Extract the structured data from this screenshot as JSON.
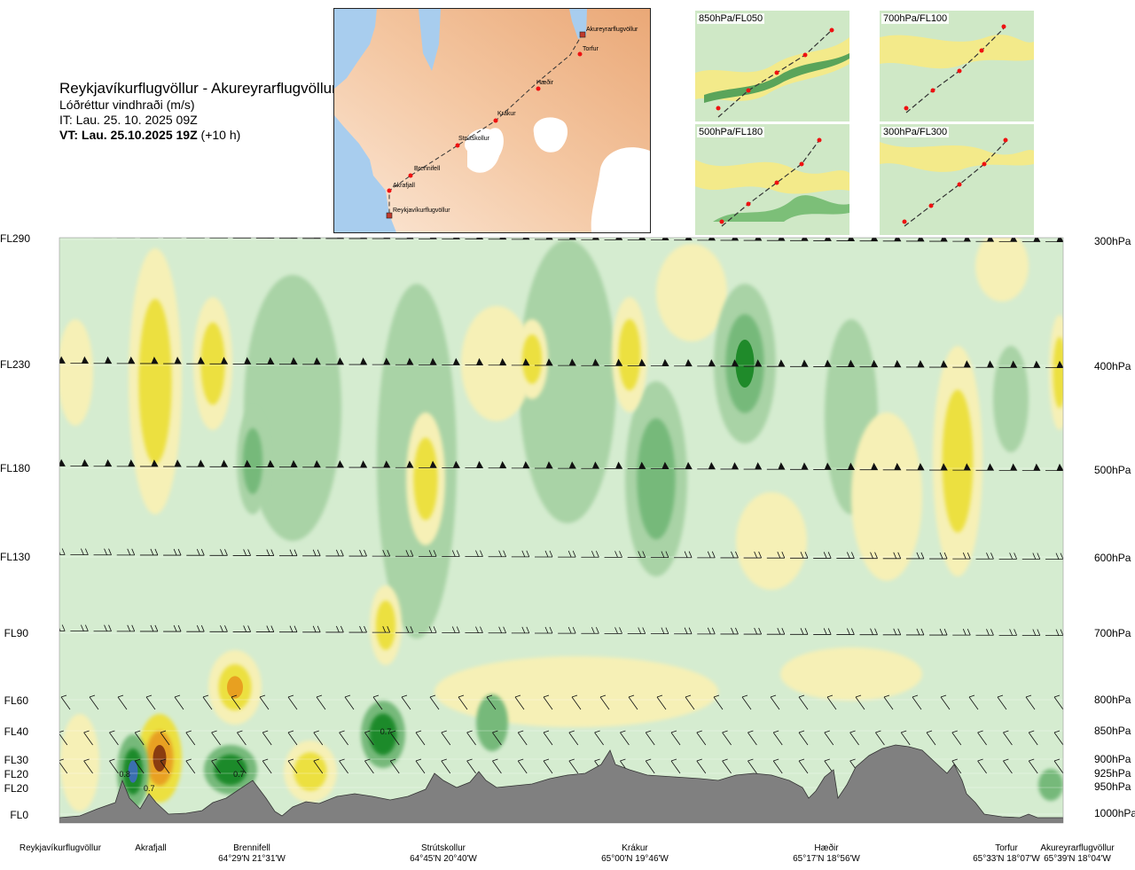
{
  "header": {
    "route": "Reykjavíkurflugvöllur - Akureyrarflugvöllur",
    "product": "Lóðréttur vindhraði (m/s)",
    "issue_time": "IT: Lau. 25. 10. 2025 09Z",
    "valid_prefix": "VT: Lau. 25.10.2025 19Z",
    "valid_offset": "(+10 h)"
  },
  "map": {
    "waypoints": [
      {
        "name": "Akureyrarflugvöllur"
      },
      {
        "name": "Torfur"
      },
      {
        "name": "Hæðir"
      },
      {
        "name": "Krákur"
      },
      {
        "name": "Strútskollur"
      },
      {
        "name": "Brennifell"
      },
      {
        "name": "Akrafjall"
      },
      {
        "name": "Reykjavíkurflugvöllur"
      }
    ]
  },
  "thumbnails": [
    {
      "label": "850hPa/FL050"
    },
    {
      "label": "700hPa/FL100"
    },
    {
      "label": "500hPa/FL180"
    },
    {
      "label": "300hPa/FL300"
    }
  ],
  "chart_data": {
    "type": "heatmap",
    "title": "Lóðréttur vindhraði (m/s)",
    "y_left_ticks": [
      "FL290",
      "FL230",
      "FL180",
      "FL130",
      "FL90",
      "FL60",
      "FL40",
      "FL30",
      "FL20",
      "FL20",
      "FL0"
    ],
    "y_right_ticks": [
      "300hPa",
      "400hPa",
      "500hPa",
      "600hPa",
      "700hPa",
      "800hPa",
      "850hPa",
      "900hPa",
      "925hPa",
      "950hPa",
      "1000hPa"
    ],
    "pressure_levels_hPa": [
      300,
      400,
      500,
      600,
      700,
      800,
      850,
      900,
      925,
      950,
      1000
    ],
    "x_locations": [
      {
        "name": "Reykjavíkurflugvöllur",
        "coord": ""
      },
      {
        "name": "Akrafjall",
        "coord": ""
      },
      {
        "name": "Brennifell",
        "coord": "64°29'N 21°31'W"
      },
      {
        "name": "Strútskollur",
        "coord": "64°45'N 20°40'W"
      },
      {
        "name": "Krákur",
        "coord": "65°00'N 19°46'W"
      },
      {
        "name": "Hæðir",
        "coord": "65°17'N 18°56'W"
      },
      {
        "name": "Torfur",
        "coord": "65°33'N 18°07'W"
      },
      {
        "name": "Akureyrarflugvöllur",
        "coord": "65°39'N 18°04'W"
      }
    ],
    "annotations": [
      {
        "text": "0.8",
        "x_km": 8,
        "p_hPa": 925
      },
      {
        "text": "0.7",
        "x_km": 11,
        "p_hPa": 950
      },
      {
        "text": "0.7",
        "x_km": 22,
        "p_hPa": 925
      },
      {
        "text": "0.7",
        "x_km": 40,
        "p_hPa": 850
      }
    ],
    "colors": {
      "strong_down": "#1f8a2a",
      "moderate_down": "#76b97a",
      "weak_down": "#a9d3a6",
      "neutral": "#d5ecd0",
      "weak_up": "#f6f0b6",
      "moderate_up": "#ece03f",
      "strong_up": "#e8a020",
      "very_strong_up": "#8a3c10",
      "terrain": "#808080"
    }
  }
}
